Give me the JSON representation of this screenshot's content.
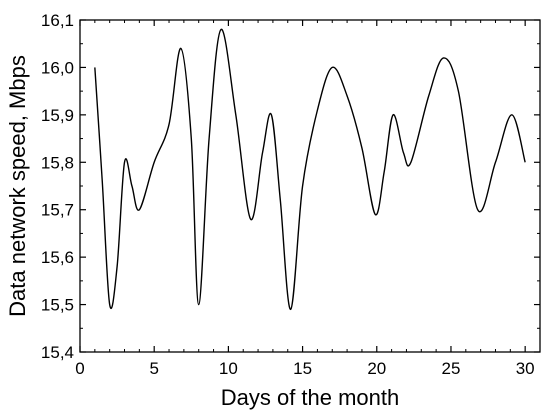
{
  "chart_data": {
    "type": "line",
    "xlabel": "Days of the month",
    "ylabel": "Data network speed, Mbps",
    "xlim": [
      0,
      31
    ],
    "ylim": [
      15.4,
      16.1
    ],
    "xticks": [
      0,
      5,
      10,
      15,
      20,
      25,
      30
    ],
    "yticks": [
      15.4,
      15.5,
      15.6,
      15.7,
      15.8,
      15.9,
      16.0,
      16.1
    ],
    "xtick_labels": [
      "0",
      "5",
      "10",
      "15",
      "20",
      "25",
      "30"
    ],
    "ytick_labels": [
      "15,4",
      "15,5",
      "15,6",
      "15,7",
      "15,8",
      "15,9",
      "16,0",
      "16,1"
    ],
    "grid": false,
    "series": [
      {
        "color": "#000000",
        "x": [
          1,
          1.5,
          2,
          2.5,
          3,
          3.5,
          4,
          5,
          6,
          6.8,
          7.5,
          8,
          8.7,
          9.5,
          10.5,
          11.5,
          12.3,
          12.9,
          13.5,
          14.2,
          15,
          16,
          17,
          18,
          19,
          19.9,
          20.5,
          21.1,
          21.8,
          22.3,
          23.5,
          24.5,
          25.5,
          26.8,
          28,
          29.1,
          30
        ],
        "y": [
          16.0,
          15.76,
          15.5,
          15.58,
          15.8,
          15.75,
          15.7,
          15.8,
          15.88,
          16.04,
          15.85,
          15.5,
          15.85,
          16.08,
          15.9,
          15.68,
          15.82,
          15.9,
          15.72,
          15.49,
          15.75,
          15.91,
          16.0,
          15.94,
          15.83,
          15.69,
          15.78,
          15.9,
          15.82,
          15.8,
          15.94,
          16.02,
          15.95,
          15.7,
          15.8,
          15.9,
          15.8
        ]
      }
    ]
  }
}
